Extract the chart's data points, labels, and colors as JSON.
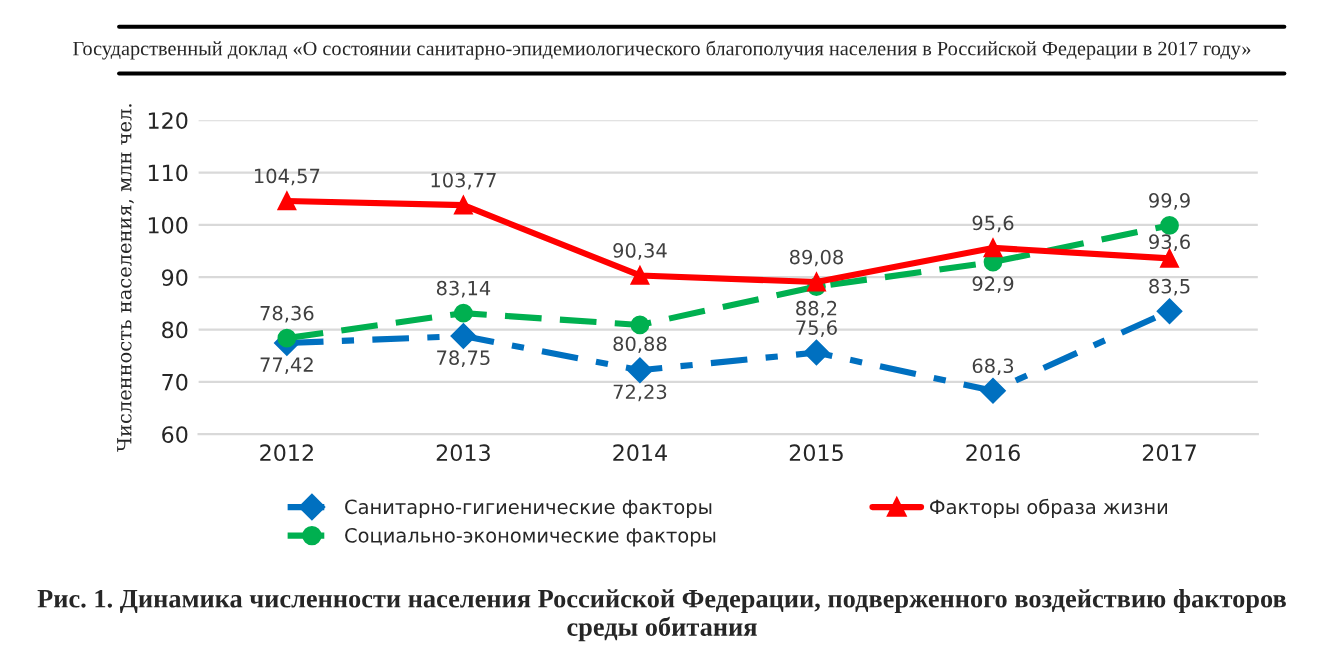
{
  "chart_data": {
    "type": "line",
    "ylabel": "Численность населения, млн чел.",
    "categories": [
      "2012",
      "2013",
      "2014",
      "2015",
      "2016",
      "2017"
    ],
    "ylim": [
      60,
      120
    ],
    "yticks": [
      60,
      70,
      80,
      90,
      100,
      110,
      120
    ],
    "grid": "y",
    "legend": "bottom",
    "series": [
      {
        "name": "Санитарно-гигиенические факторы",
        "color": "#0070c0",
        "marker": "diamond",
        "line_style": "dashdot",
        "values": [
          77.42,
          78.75,
          72.23,
          75.6,
          68.3,
          83.5
        ],
        "value_labels": [
          "77,42",
          "78,75",
          "72,23",
          "75,6",
          "68,3",
          "83,5"
        ]
      },
      {
        "name": "Социально-экономические факторы",
        "color": "#00b050",
        "marker": "circle",
        "line_style": "dashed",
        "values": [
          78.36,
          83.14,
          80.88,
          88.2,
          92.9,
          99.9
        ],
        "value_labels": [
          "78,36",
          "83,14",
          "80,88",
          "88,2",
          "92,9",
          "99,9"
        ]
      },
      {
        "name": "Факторы образа жизни",
        "color": "#ff0000",
        "marker": "triangle",
        "line_style": "solid",
        "values": [
          104.57,
          103.77,
          90.34,
          89.08,
          95.6,
          93.6
        ],
        "value_labels": [
          "104,57",
          "103,77",
          "90,34",
          "89,08",
          "95,6",
          "93,6"
        ]
      }
    ],
    "annotations": [
      "Государственный доклад «О состоянии санитарно-эпидемиологического благополучия населения в Российской Федерации в 2017 году»",
      "Рис. 1. Динамика численности населения Российской Федерации, подверженного воздействию факторов среды обитания"
    ]
  }
}
